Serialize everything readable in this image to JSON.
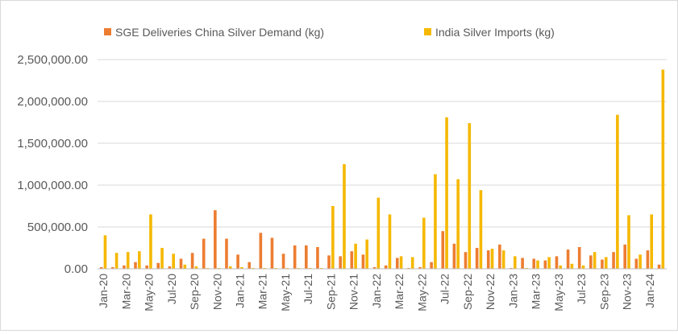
{
  "chart_data": {
    "type": "bar",
    "title": "",
    "xlabel": "",
    "ylabel": "",
    "ylim": [
      0,
      2500000
    ],
    "yticks": [
      0,
      500000,
      1000000,
      1500000,
      2000000,
      2500000
    ],
    "ytick_labels": [
      "0.00",
      "500,000.00",
      "1,000,000.00",
      "1,500,000.00",
      "2,000,000.00",
      "2,500,000.00"
    ],
    "grid": true,
    "legend_position": "top",
    "categories": [
      "Jan-20",
      "Feb-20",
      "Mar-20",
      "Apr-20",
      "May-20",
      "Jun-20",
      "Jul-20",
      "Aug-20",
      "Sep-20",
      "Oct-20",
      "Nov-20",
      "Dec-20",
      "Jan-21",
      "Feb-21",
      "Mar-21",
      "Apr-21",
      "May-21",
      "Jun-21",
      "Jul-21",
      "Aug-21",
      "Sep-21",
      "Oct-21",
      "Nov-21",
      "Dec-21",
      "Jan-22",
      "Feb-22",
      "Mar-22",
      "Apr-22",
      "May-22",
      "Jun-22",
      "Jul-22",
      "Aug-22",
      "Sep-22",
      "Oct-22",
      "Nov-22",
      "Dec-22",
      "Jan-23",
      "Feb-23",
      "Mar-23",
      "Apr-23",
      "May-23",
      "Jun-23",
      "Jul-23",
      "Aug-23",
      "Sep-23",
      "Oct-23",
      "Nov-23",
      "Dec-23",
      "Jan-24",
      "Feb-24"
    ],
    "tick_labels_shown": [
      "Jan-20",
      "Mar-20",
      "May-20",
      "Jul-20",
      "Sep-20",
      "Nov-20",
      "Jan-21",
      "Mar-21",
      "May-21",
      "Jul-21",
      "Sep-21",
      "Nov-21",
      "Jan-22",
      "Mar-22",
      "May-22",
      "Jul-22",
      "Sep-22",
      "Nov-22",
      "Jan-23",
      "Mar-23",
      "May-23",
      "Jul-23",
      "Sep-23",
      "Nov-23",
      "Jan-24"
    ],
    "series": [
      {
        "name": "SGE Deliveries China Silver Demand (kg)",
        "color": "#ED7D31",
        "values": [
          20000,
          20000,
          40000,
          80000,
          40000,
          70000,
          30000,
          120000,
          190000,
          360000,
          700000,
          360000,
          170000,
          80000,
          430000,
          370000,
          180000,
          280000,
          280000,
          260000,
          160000,
          150000,
          210000,
          170000,
          20000,
          40000,
          130000,
          10000,
          20000,
          80000,
          450000,
          300000,
          200000,
          250000,
          220000,
          290000,
          10000,
          130000,
          120000,
          100000,
          150000,
          230000,
          260000,
          160000,
          110000,
          200000,
          290000,
          120000,
          220000,
          50000
        ]
      },
      {
        "name": "India Silver Imports (kg)",
        "color": "#F5B800",
        "values": [
          400000,
          190000,
          200000,
          210000,
          650000,
          250000,
          180000,
          50000,
          30000,
          10000,
          10000,
          30000,
          20000,
          10000,
          10000,
          10000,
          10000,
          10000,
          10000,
          10000,
          750000,
          1250000,
          300000,
          350000,
          850000,
          650000,
          150000,
          140000,
          610000,
          1130000,
          1810000,
          1070000,
          1740000,
          940000,
          240000,
          220000,
          150000,
          10000,
          100000,
          140000,
          40000,
          60000,
          40000,
          200000,
          140000,
          1840000,
          640000,
          170000,
          650000,
          2380000
        ]
      }
    ]
  }
}
